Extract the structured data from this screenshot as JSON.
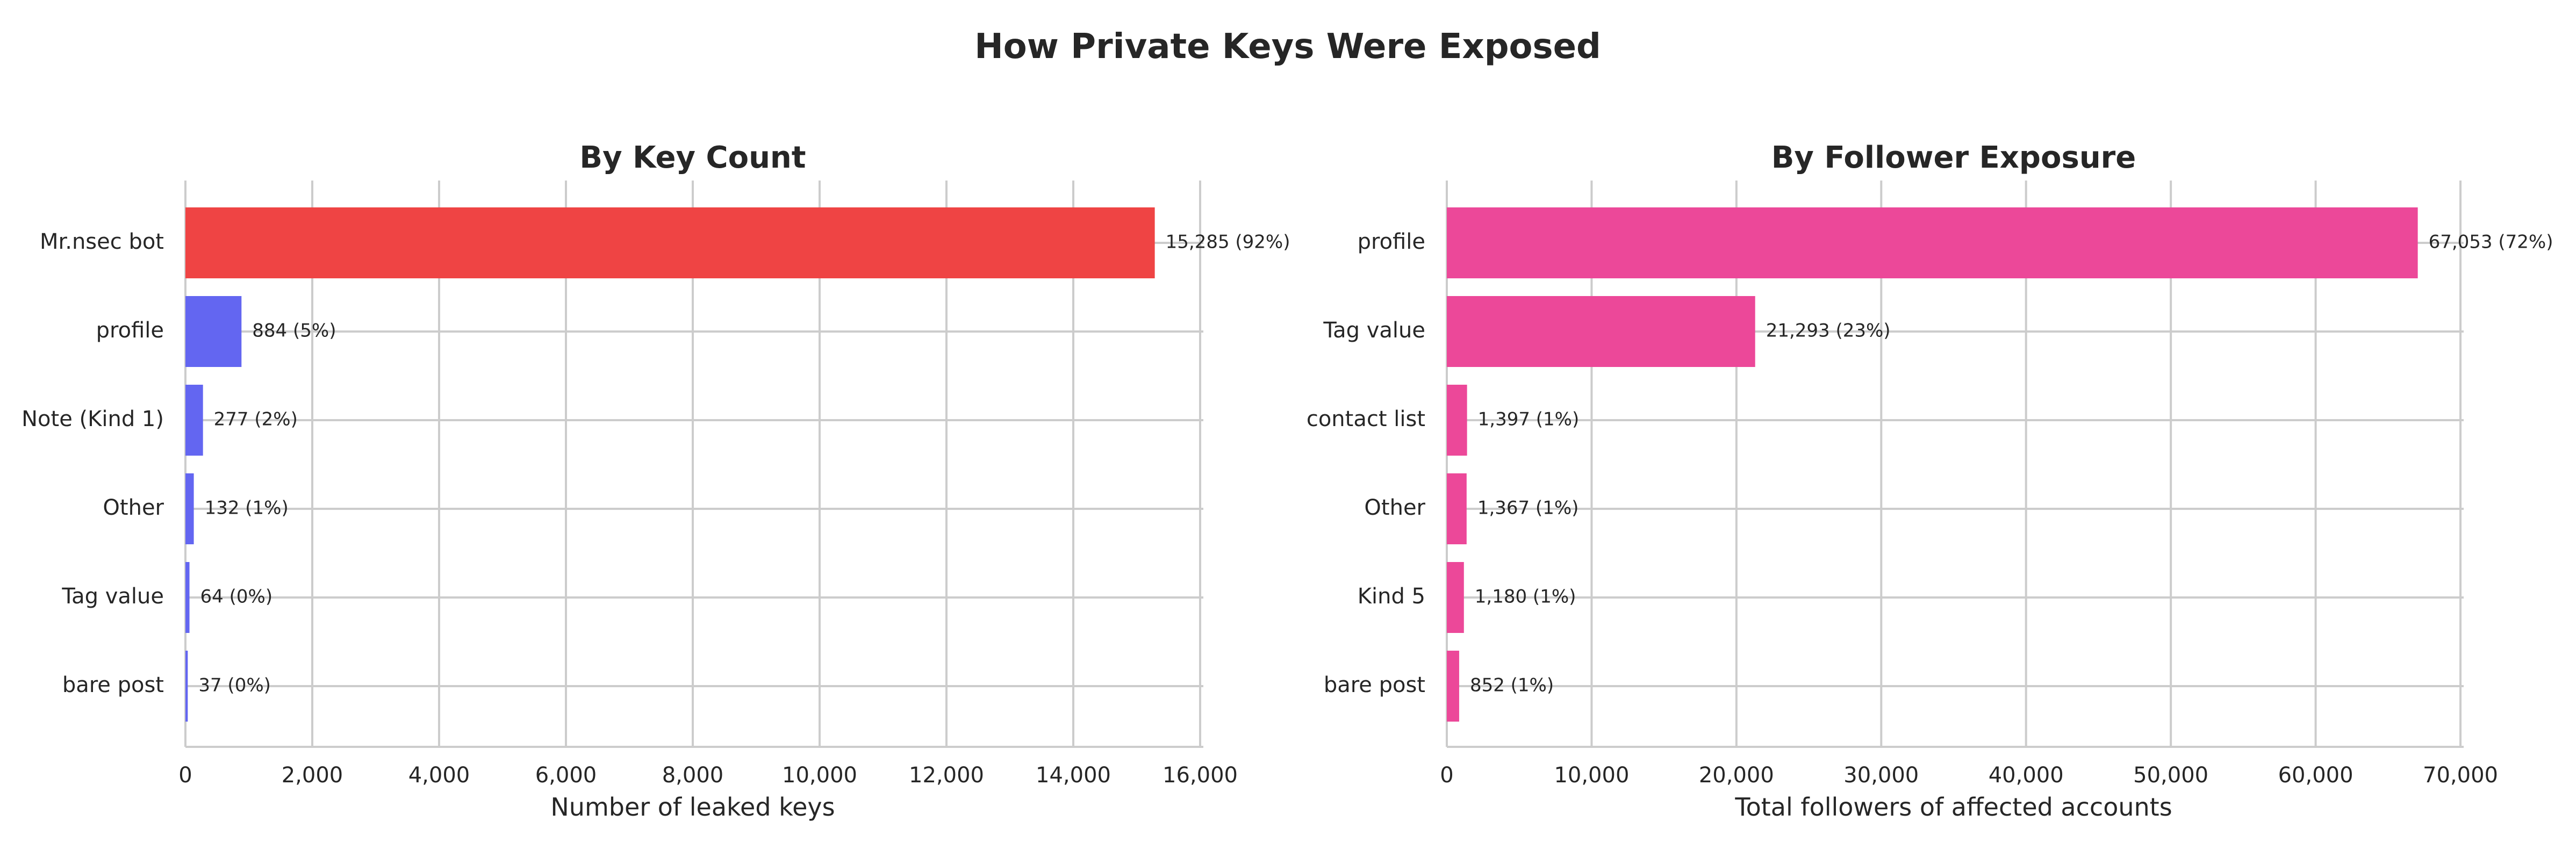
{
  "figure": {
    "title": "How Private Keys Were Exposed"
  },
  "chart_data": [
    {
      "type": "bar",
      "orientation": "horizontal",
      "title": "By Key Count",
      "xlabel": "Number of leaked keys",
      "ylabel": "",
      "xlim": [
        0,
        16000
      ],
      "x_ticks": [
        0,
        2000,
        4000,
        6000,
        8000,
        10000,
        12000,
        14000,
        16000
      ],
      "x_tick_labels": [
        "0",
        "2,000",
        "4,000",
        "6,000",
        "8,000",
        "10,000",
        "12,000",
        "14,000",
        "16,000"
      ],
      "grid": true,
      "categories": [
        "Mr.nsec bot",
        "profile",
        "Note (Kind 1)",
        "Other",
        "Tag value",
        "bare post"
      ],
      "values": [
        15285,
        884,
        277,
        132,
        64,
        37
      ],
      "data_labels": [
        "15,285 (92%)",
        "884 (5%)",
        "277 (2%)",
        "132 (1%)",
        "64 (0%)",
        "37 (0%)"
      ],
      "colors": [
        "#ef4444",
        "#6366f1",
        "#6366f1",
        "#6366f1",
        "#6366f1",
        "#6366f1"
      ]
    },
    {
      "type": "bar",
      "orientation": "horizontal",
      "title": "By Follower Exposure",
      "xlabel": "Total followers of affected accounts",
      "ylabel": "",
      "xlim": [
        0,
        70000
      ],
      "x_ticks": [
        0,
        10000,
        20000,
        30000,
        40000,
        50000,
        60000,
        70000
      ],
      "x_tick_labels": [
        "0",
        "10,000",
        "20,000",
        "30,000",
        "40,000",
        "50,000",
        "60,000",
        "70,000"
      ],
      "grid": true,
      "categories": [
        "profile",
        "Tag value",
        "contact list",
        "Other",
        "Kind 5",
        "bare post"
      ],
      "values": [
        67053,
        21293,
        1397,
        1367,
        1180,
        852
      ],
      "data_labels": [
        "67,053 (72%)",
        "21,293 (23%)",
        "1,397 (1%)",
        "1,367 (1%)",
        "1,180 (1%)",
        "852 (1%)"
      ],
      "colors": [
        "#ec4899",
        "#ec4899",
        "#ec4899",
        "#ec4899",
        "#ec4899",
        "#ec4899"
      ]
    }
  ]
}
